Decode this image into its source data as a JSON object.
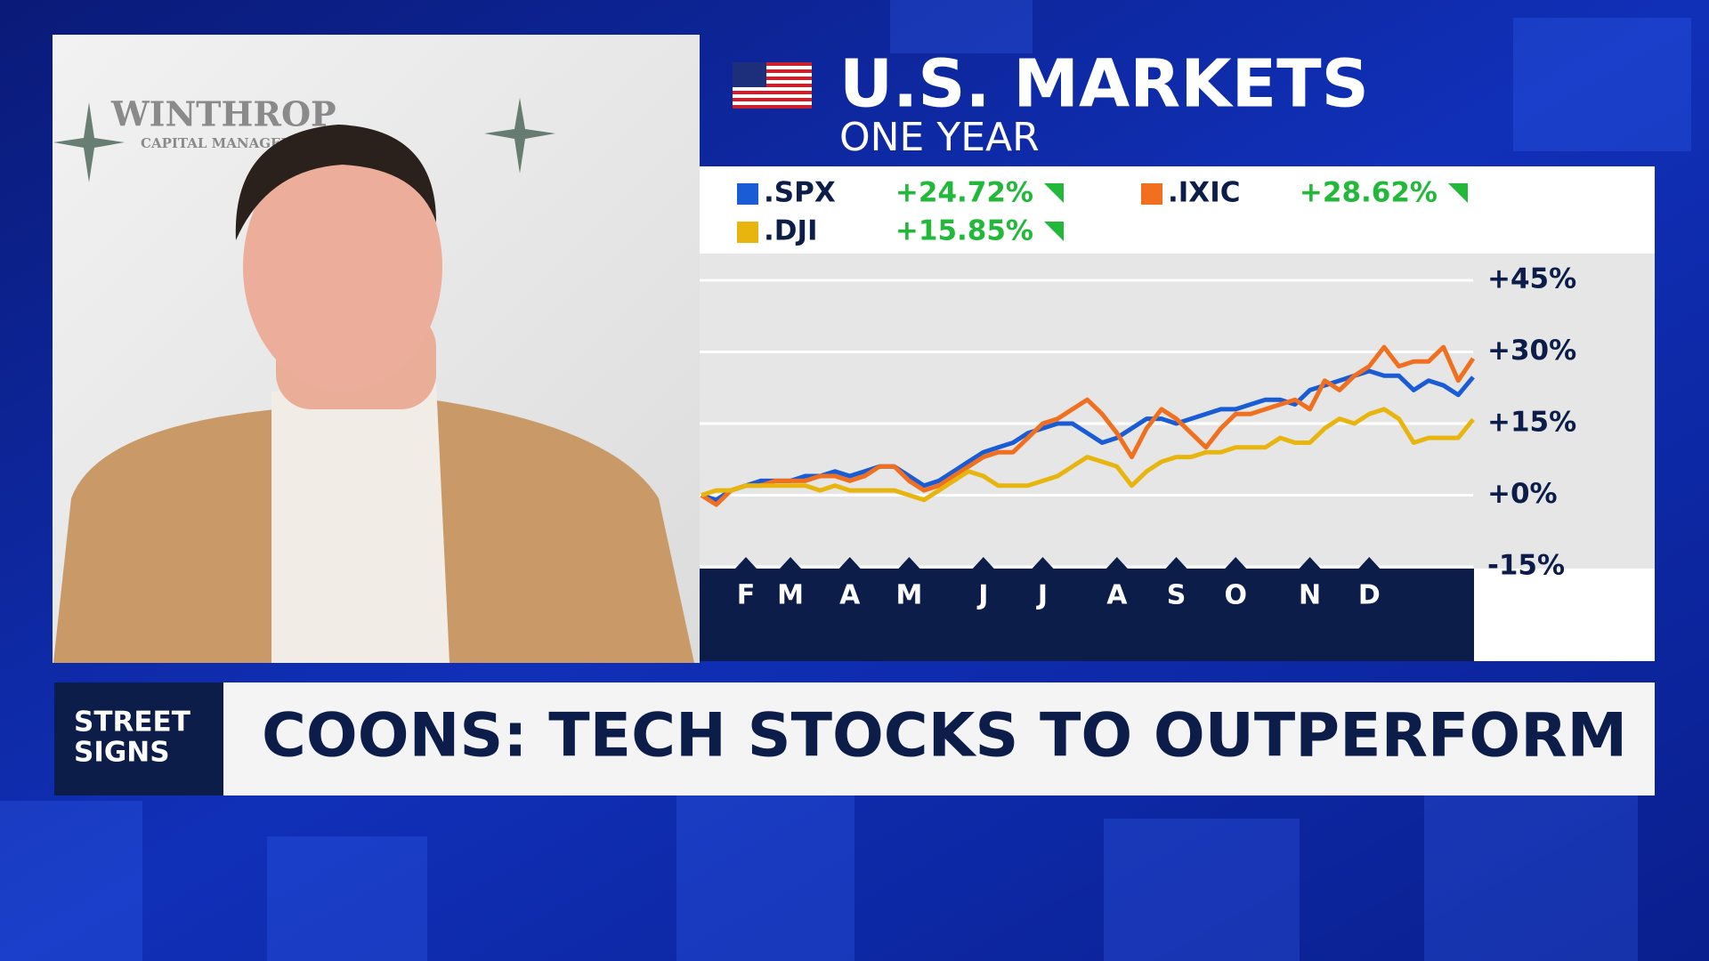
{
  "header": {
    "title": "U.S. MARKETS",
    "subtitle": "ONE YEAR"
  },
  "video": {
    "backdrop_text": [
      "WINTHROP",
      "CAPITAL MANAGEMENT"
    ]
  },
  "chart_data": {
    "type": "line",
    "categories": [
      null,
      null,
      null,
      "F",
      null,
      null,
      "M",
      null,
      null,
      null,
      "A",
      null,
      null,
      null,
      "M",
      null,
      null,
      null,
      null,
      "J",
      null,
      null,
      null,
      "J",
      null,
      null,
      null,
      null,
      "A",
      null,
      null,
      null,
      "S",
      null,
      null,
      null,
      "O",
      null,
      null,
      null,
      null,
      "N",
      null,
      null,
      null,
      "D",
      null,
      null,
      null,
      null,
      null,
      null,
      null
    ],
    "series": [
      {
        "name": ".SPX",
        "color": "#1a5bd6",
        "change": {
          "value": 24.72,
          "label": "+24.72%"
        },
        "values": [
          0,
          -1,
          1,
          2,
          3,
          3,
          3,
          4,
          4,
          5,
          4,
          5,
          6,
          6,
          4,
          2,
          3,
          5,
          7,
          9,
          10,
          11,
          13,
          14,
          15,
          15,
          13,
          11,
          12,
          14,
          16,
          16,
          15,
          16,
          17,
          18,
          18,
          19,
          20,
          20,
          19,
          22,
          23,
          24,
          25,
          26,
          25,
          25,
          22,
          24,
          23,
          21,
          24.72
        ]
      },
      {
        "name": ".IXIC",
        "color": "#f07020",
        "change": {
          "value": 28.62,
          "label": "+28.62%"
        },
        "values": [
          0,
          -2,
          1,
          2,
          2,
          3,
          3,
          3,
          4,
          4,
          3,
          4,
          6,
          6,
          3,
          1,
          2,
          4,
          6,
          8,
          9,
          9,
          12,
          15,
          16,
          18,
          20,
          17,
          13,
          8,
          14,
          18,
          16,
          13,
          10,
          14,
          17,
          17,
          18,
          19,
          20,
          18,
          24,
          22,
          25,
          27,
          31,
          27,
          28,
          28,
          31,
          24,
          28.62
        ]
      },
      {
        "name": ".DJI",
        "color": "#e8b50f",
        "change": {
          "value": 15.85,
          "label": "+15.85%"
        },
        "values": [
          0,
          1,
          1,
          2,
          2,
          2,
          2,
          2,
          1,
          2,
          1,
          1,
          1,
          1,
          0,
          -1,
          1,
          3,
          5,
          4,
          2,
          2,
          2,
          3,
          4,
          6,
          8,
          7,
          6,
          2,
          5,
          7,
          8,
          8,
          9,
          9,
          10,
          10,
          10,
          12,
          11,
          11,
          14,
          16,
          15,
          17,
          18,
          16,
          11,
          12,
          12,
          12,
          15.85
        ]
      }
    ],
    "ylim": [
      -15,
      45
    ],
    "yticks": [
      {
        "value": 45,
        "label": "+45%"
      },
      {
        "value": 30,
        "label": "+30%"
      },
      {
        "value": 15,
        "label": "+15%"
      },
      {
        "value": 0,
        "label": "+0%"
      },
      {
        "value": -15,
        "label": "-15%"
      }
    ],
    "grid": true
  },
  "banner": {
    "tag": [
      "STREET",
      "SIGNS"
    ],
    "headline": "COONS: TECH STOCKS TO OUTPERFORM"
  }
}
